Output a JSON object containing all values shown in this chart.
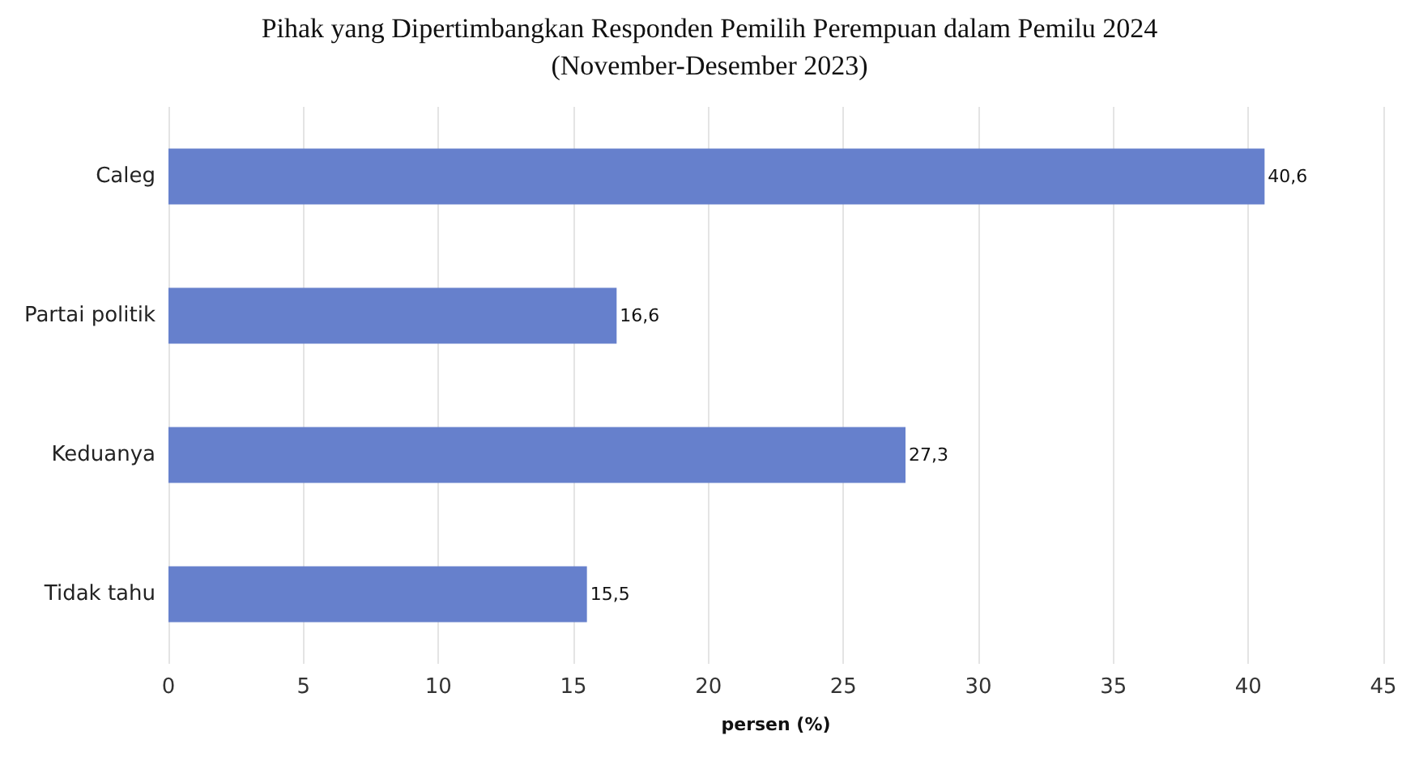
{
  "chart_data": {
    "type": "bar",
    "orientation": "horizontal",
    "title": "Pihak yang Dipertimbangkan Responden Pemilih Perempuan dalam Pemilu 2024",
    "subtitle": "(November-Desember 2023)",
    "xlabel": "persen (%)",
    "categories": [
      "Caleg",
      "Partai politik",
      "Keduanya",
      "Tidak tahu"
    ],
    "values": [
      40.6,
      16.6,
      27.3,
      15.5
    ],
    "value_labels": [
      "40,6",
      "16,6",
      "27,3",
      "15,5"
    ],
    "color": "#6680cc",
    "xlim": [
      0,
      45
    ],
    "xticks": [
      0,
      5,
      10,
      15,
      20,
      25,
      30,
      35,
      40,
      45
    ],
    "grid": "x"
  }
}
